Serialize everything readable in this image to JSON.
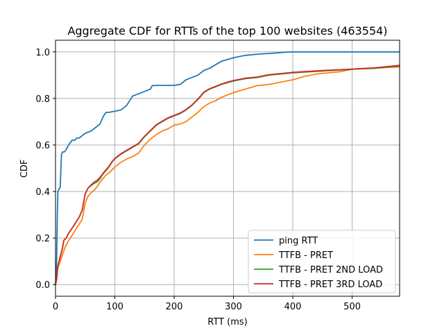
{
  "chart_data": {
    "type": "line",
    "title": "Aggregate CDF for RTTs of the top 100 websites (463554)",
    "xlabel": "RTT (ms)",
    "ylabel": "CDF",
    "xlim": [
      0,
      580
    ],
    "ylim": [
      -0.05,
      1.05
    ],
    "xticks": [
      0,
      100,
      200,
      300,
      400,
      500
    ],
    "xtick_labels": [
      "0",
      "100",
      "200",
      "300",
      "400",
      "500"
    ],
    "yticks": [
      0.0,
      0.2,
      0.4,
      0.6,
      0.8,
      1.0
    ],
    "ytick_labels": [
      "0.0",
      "0.2",
      "0.4",
      "0.6",
      "0.8",
      "1.0"
    ],
    "grid": true,
    "legend_position": "bottom-right",
    "series": [
      {
        "name": "ping RTT",
        "color": "#1f77b4",
        "points": [
          [
            0,
            0
          ],
          [
            1,
            0.02
          ],
          [
            2,
            0.12
          ],
          [
            3,
            0.3
          ],
          [
            4,
            0.4
          ],
          [
            6,
            0.41
          ],
          [
            8,
            0.42
          ],
          [
            10,
            0.56
          ],
          [
            12,
            0.57
          ],
          [
            15,
            0.57
          ],
          [
            18,
            0.58
          ],
          [
            20,
            0.59
          ],
          [
            22,
            0.6
          ],
          [
            25,
            0.61
          ],
          [
            28,
            0.62
          ],
          [
            32,
            0.62
          ],
          [
            36,
            0.63
          ],
          [
            40,
            0.63
          ],
          [
            45,
            0.64
          ],
          [
            50,
            0.65
          ],
          [
            55,
            0.655
          ],
          [
            60,
            0.66
          ],
          [
            65,
            0.67
          ],
          [
            70,
            0.68
          ],
          [
            75,
            0.69
          ],
          [
            80,
            0.72
          ],
          [
            85,
            0.74
          ],
          [
            90,
            0.74
          ],
          [
            100,
            0.745
          ],
          [
            110,
            0.75
          ],
          [
            115,
            0.76
          ],
          [
            120,
            0.77
          ],
          [
            125,
            0.79
          ],
          [
            130,
            0.81
          ],
          [
            140,
            0.82
          ],
          [
            150,
            0.83
          ],
          [
            160,
            0.84
          ],
          [
            163,
            0.855
          ],
          [
            170,
            0.856
          ],
          [
            180,
            0.856
          ],
          [
            190,
            0.856
          ],
          [
            200,
            0.856
          ],
          [
            210,
            0.86
          ],
          [
            215,
            0.87
          ],
          [
            220,
            0.88
          ],
          [
            230,
            0.89
          ],
          [
            240,
            0.9
          ],
          [
            250,
            0.92
          ],
          [
            260,
            0.93
          ],
          [
            270,
            0.945
          ],
          [
            280,
            0.96
          ],
          [
            300,
            0.975
          ],
          [
            320,
            0.985
          ],
          [
            340,
            0.99
          ],
          [
            360,
            0.993
          ],
          [
            380,
            0.997
          ],
          [
            390,
            0.999
          ],
          [
            400,
            1.0
          ],
          [
            500,
            1.0
          ],
          [
            580,
            1.0
          ]
        ]
      },
      {
        "name": "TTFB - PRET",
        "color": "#ff7f0e",
        "points": [
          [
            0,
            0
          ],
          [
            2,
            0.02
          ],
          [
            4,
            0.07
          ],
          [
            8,
            0.1
          ],
          [
            12,
            0.13
          ],
          [
            16,
            0.16
          ],
          [
            20,
            0.18
          ],
          [
            25,
            0.2
          ],
          [
            30,
            0.22
          ],
          [
            35,
            0.24
          ],
          [
            40,
            0.26
          ],
          [
            45,
            0.28
          ],
          [
            48,
            0.32
          ],
          [
            50,
            0.35
          ],
          [
            55,
            0.38
          ],
          [
            60,
            0.395
          ],
          [
            65,
            0.405
          ],
          [
            70,
            0.42
          ],
          [
            75,
            0.44
          ],
          [
            80,
            0.455
          ],
          [
            85,
            0.47
          ],
          [
            90,
            0.48
          ],
          [
            100,
            0.505
          ],
          [
            110,
            0.525
          ],
          [
            120,
            0.54
          ],
          [
            130,
            0.55
          ],
          [
            140,
            0.565
          ],
          [
            150,
            0.6
          ],
          [
            160,
            0.625
          ],
          [
            170,
            0.645
          ],
          [
            180,
            0.66
          ],
          [
            190,
            0.67
          ],
          [
            200,
            0.685
          ],
          [
            210,
            0.69
          ],
          [
            220,
            0.7
          ],
          [
            230,
            0.72
          ],
          [
            240,
            0.74
          ],
          [
            250,
            0.765
          ],
          [
            260,
            0.78
          ],
          [
            270,
            0.79
          ],
          [
            280,
            0.805
          ],
          [
            290,
            0.815
          ],
          [
            300,
            0.825
          ],
          [
            320,
            0.84
          ],
          [
            340,
            0.855
          ],
          [
            360,
            0.86
          ],
          [
            380,
            0.87
          ],
          [
            400,
            0.88
          ],
          [
            420,
            0.895
          ],
          [
            440,
            0.905
          ],
          [
            460,
            0.91
          ],
          [
            480,
            0.915
          ],
          [
            500,
            0.925
          ],
          [
            520,
            0.928
          ],
          [
            540,
            0.93
          ],
          [
            560,
            0.933
          ],
          [
            580,
            0.935
          ]
        ]
      },
      {
        "name": "TTFB - PRET 2ND LOAD",
        "color": "#2ca02c",
        "points": [
          [
            0,
            0
          ],
          [
            2,
            0.03
          ],
          [
            4,
            0.08
          ],
          [
            8,
            0.12
          ],
          [
            12,
            0.16
          ],
          [
            14,
            0.19
          ],
          [
            18,
            0.2
          ],
          [
            22,
            0.22
          ],
          [
            26,
            0.235
          ],
          [
            30,
            0.25
          ],
          [
            35,
            0.27
          ],
          [
            40,
            0.29
          ],
          [
            45,
            0.32
          ],
          [
            48,
            0.36
          ],
          [
            50,
            0.39
          ],
          [
            55,
            0.415
          ],
          [
            60,
            0.425
          ],
          [
            65,
            0.435
          ],
          [
            70,
            0.44
          ],
          [
            75,
            0.455
          ],
          [
            80,
            0.475
          ],
          [
            85,
            0.49
          ],
          [
            90,
            0.505
          ],
          [
            95,
            0.525
          ],
          [
            100,
            0.54
          ],
          [
            110,
            0.56
          ],
          [
            120,
            0.575
          ],
          [
            130,
            0.59
          ],
          [
            140,
            0.605
          ],
          [
            150,
            0.635
          ],
          [
            160,
            0.66
          ],
          [
            170,
            0.685
          ],
          [
            180,
            0.7
          ],
          [
            190,
            0.715
          ],
          [
            200,
            0.725
          ],
          [
            210,
            0.735
          ],
          [
            220,
            0.75
          ],
          [
            230,
            0.77
          ],
          [
            240,
            0.795
          ],
          [
            250,
            0.825
          ],
          [
            260,
            0.84
          ],
          [
            270,
            0.85
          ],
          [
            280,
            0.86
          ],
          [
            290,
            0.868
          ],
          [
            300,
            0.875
          ],
          [
            320,
            0.885
          ],
          [
            340,
            0.89
          ],
          [
            360,
            0.9
          ],
          [
            380,
            0.905
          ],
          [
            400,
            0.91
          ],
          [
            450,
            0.918
          ],
          [
            500,
            0.925
          ],
          [
            540,
            0.93
          ],
          [
            580,
            0.94
          ]
        ]
      },
      {
        "name": "TTFB - PRET 3RD LOAD",
        "color": "#d62728",
        "points": [
          [
            0,
            0
          ],
          [
            2,
            0.03
          ],
          [
            4,
            0.08
          ],
          [
            8,
            0.12
          ],
          [
            12,
            0.16
          ],
          [
            14,
            0.19
          ],
          [
            18,
            0.2
          ],
          [
            22,
            0.22
          ],
          [
            26,
            0.235
          ],
          [
            30,
            0.25
          ],
          [
            35,
            0.27
          ],
          [
            40,
            0.29
          ],
          [
            45,
            0.32
          ],
          [
            48,
            0.36
          ],
          [
            50,
            0.39
          ],
          [
            55,
            0.415
          ],
          [
            60,
            0.428
          ],
          [
            65,
            0.44
          ],
          [
            70,
            0.448
          ],
          [
            75,
            0.46
          ],
          [
            80,
            0.478
          ],
          [
            85,
            0.493
          ],
          [
            90,
            0.508
          ],
          [
            95,
            0.527
          ],
          [
            100,
            0.542
          ],
          [
            110,
            0.562
          ],
          [
            120,
            0.577
          ],
          [
            130,
            0.592
          ],
          [
            140,
            0.607
          ],
          [
            150,
            0.637
          ],
          [
            160,
            0.662
          ],
          [
            170,
            0.687
          ],
          [
            180,
            0.702
          ],
          [
            190,
            0.717
          ],
          [
            200,
            0.727
          ],
          [
            210,
            0.737
          ],
          [
            220,
            0.752
          ],
          [
            230,
            0.772
          ],
          [
            240,
            0.797
          ],
          [
            250,
            0.827
          ],
          [
            260,
            0.842
          ],
          [
            270,
            0.852
          ],
          [
            280,
            0.862
          ],
          [
            290,
            0.87
          ],
          [
            300,
            0.877
          ],
          [
            320,
            0.887
          ],
          [
            340,
            0.892
          ],
          [
            360,
            0.902
          ],
          [
            380,
            0.907
          ],
          [
            400,
            0.912
          ],
          [
            450,
            0.92
          ],
          [
            500,
            0.926
          ],
          [
            540,
            0.932
          ],
          [
            580,
            0.942
          ]
        ]
      }
    ]
  }
}
